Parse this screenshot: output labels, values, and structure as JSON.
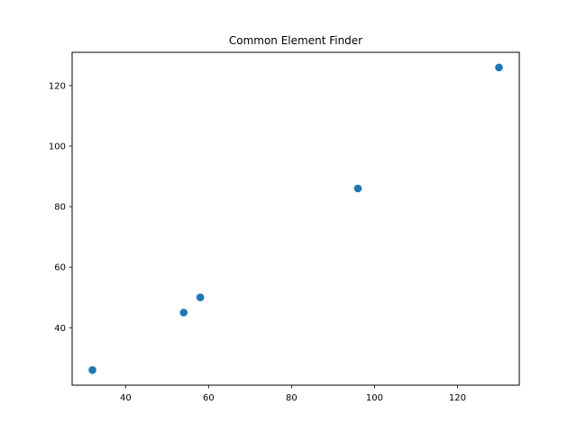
{
  "chart_data": {
    "type": "scatter",
    "title": "Common Element Finder",
    "xlabel": "",
    "ylabel": "",
    "xlim": [
      27.1,
      134.9
    ],
    "ylim": [
      21,
      131
    ],
    "x_ticks": [
      40,
      60,
      80,
      100,
      120
    ],
    "y_ticks": [
      40,
      60,
      80,
      100,
      120
    ],
    "grid": false,
    "marker_color": "#1f77b4",
    "series": [
      {
        "points": [
          {
            "x": 32,
            "y": 26
          },
          {
            "x": 54,
            "y": 45
          },
          {
            "x": 58,
            "y": 50
          },
          {
            "x": 96,
            "y": 86
          },
          {
            "x": 130,
            "y": 126
          }
        ]
      }
    ]
  }
}
